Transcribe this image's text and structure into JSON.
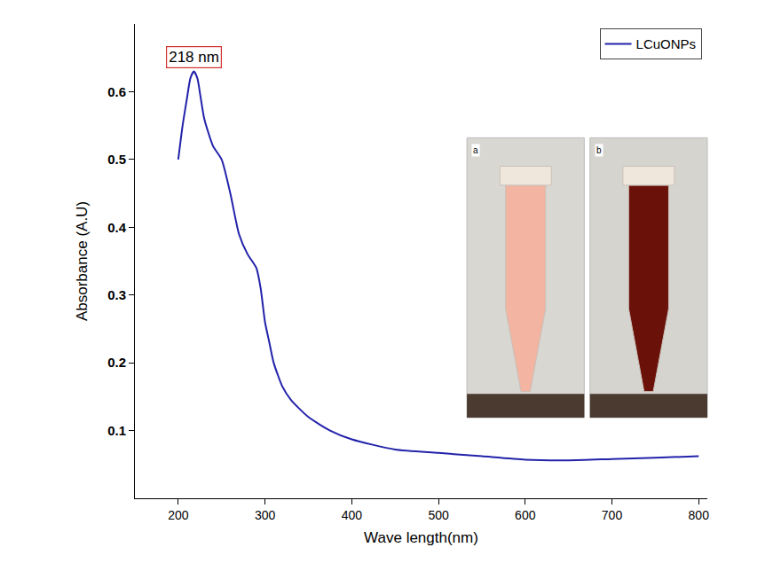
{
  "chart_data": {
    "type": "line",
    "x": [
      200,
      205,
      210,
      214,
      218,
      222,
      226,
      230,
      240,
      250,
      260,
      270,
      280,
      290,
      295,
      300,
      305,
      310,
      320,
      330,
      350,
      375,
      400,
      450,
      500,
      550,
      600,
      650,
      700,
      750,
      800
    ],
    "series": [
      {
        "name": "LCuONPs",
        "color": "#2222aa",
        "values": [
          0.5,
          0.55,
          0.59,
          0.62,
          0.63,
          0.62,
          0.59,
          0.56,
          0.52,
          0.5,
          0.45,
          0.39,
          0.36,
          0.34,
          0.31,
          0.26,
          0.23,
          0.2,
          0.165,
          0.145,
          0.12,
          0.1,
          0.087,
          0.072,
          0.067,
          0.062,
          0.057,
          0.056,
          0.058,
          0.06,
          0.062
        ]
      }
    ],
    "x_label": "Wave length(nm)",
    "y_label": "Absorbance (A.U)",
    "xlim": [
      150,
      810
    ],
    "xticks": [
      200,
      300,
      400,
      500,
      600,
      700,
      800
    ],
    "ylim": [
      0,
      0.7
    ],
    "yticks": [
      0.1,
      0.2,
      0.3,
      0.4,
      0.5,
      0.6
    ],
    "grid": false,
    "legend": "top-right",
    "annotations": [
      {
        "text": "218 nm",
        "x": 218,
        "y": 0.63
      },
      {
        "text": "a"
      },
      {
        "text": "b"
      }
    ]
  }
}
